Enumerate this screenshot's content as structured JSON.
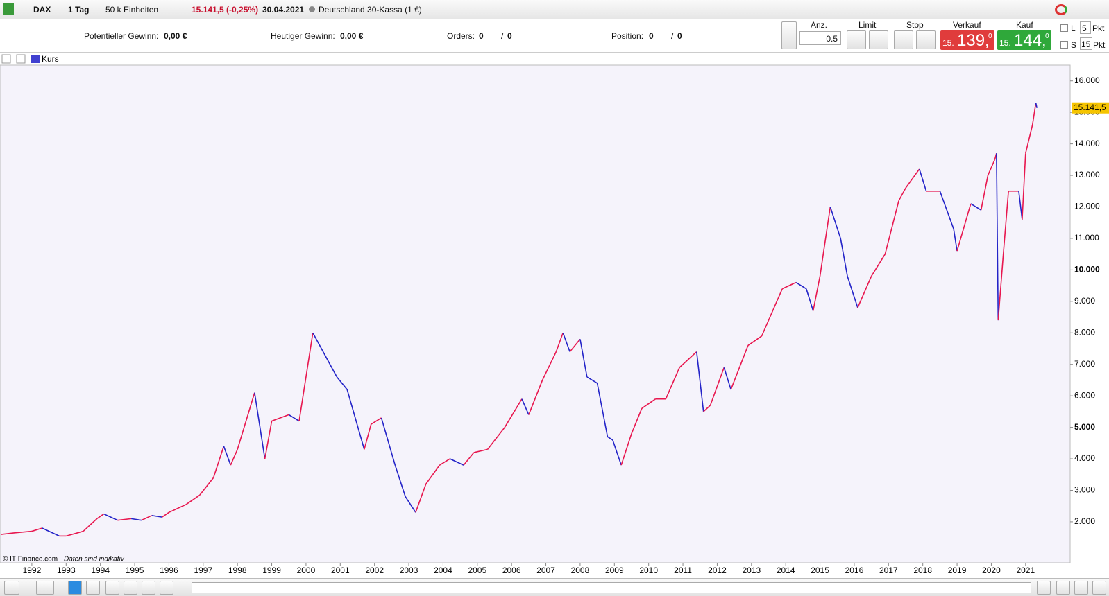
{
  "toolbar": {
    "symbol": "DAX",
    "period": "1 Tag",
    "units": "50 k Einheiten",
    "price": "15.141,5 (-0,25%)",
    "date": "30.04.2021",
    "instrument": "Deutschland 30-Kassa (1 €)"
  },
  "info": {
    "potential_label": "Potentieller Gewinn:",
    "potential_value": "0,00 €",
    "daily_label": "Heutiger Gewinn:",
    "daily_value": "0,00 €",
    "orders_label": "Orders:",
    "orders_open": "0",
    "orders_sep": "/",
    "orders_total": "0",
    "position_label": "Position:",
    "position_open": "0",
    "position_sep": "/",
    "position_total": "0"
  },
  "order_panel": {
    "amount_label": "Anz.",
    "amount": "0.5",
    "limit_label": "Limit",
    "stop_label": "Stop",
    "sell_label": "Verkauf",
    "sell_prefix": "15.",
    "sell_main": "139,",
    "sell_suffix": "0",
    "buy_label": "Kauf",
    "buy_prefix": "15.",
    "buy_main": "144,",
    "buy_suffix": "0",
    "l_label": "L",
    "l_value": "5",
    "l_unit": "Pkt",
    "s_label": "S",
    "s_value": "15",
    "s_unit": "Pkt"
  },
  "chart": {
    "type": "line",
    "legend": "Kurs",
    "copyright": "© IT-Finance.com",
    "note": "Daten sind indikativ",
    "last_price_label": "15.141,5",
    "up_color": "#e8174f",
    "down_color": "#2323c8",
    "xlim": [
      1991.07,
      2022.3
    ],
    "ylim": [
      700,
      16500
    ],
    "xticks": [
      1992,
      1993,
      1994,
      1995,
      1996,
      1997,
      1998,
      1999,
      2000,
      2001,
      2002,
      2003,
      2004,
      2005,
      2006,
      2007,
      2008,
      2009,
      2010,
      2011,
      2012,
      2013,
      2014,
      2015,
      2016,
      2017,
      2018,
      2019,
      2020,
      2021
    ],
    "yticks": [
      {
        "value": 2000,
        "label": "2.000"
      },
      {
        "value": 3000,
        "label": "3.000"
      },
      {
        "value": 4000,
        "label": "4.000"
      },
      {
        "value": 5000,
        "label": "5.000"
      },
      {
        "value": 6000,
        "label": "6.000"
      },
      {
        "value": 7000,
        "label": "7.000"
      },
      {
        "value": 8000,
        "label": "8.000"
      },
      {
        "value": 9000,
        "label": "9.000"
      },
      {
        "value": 10000,
        "label": "10.000"
      },
      {
        "value": 11000,
        "label": "11.000"
      },
      {
        "value": 12000,
        "label": "12.000"
      },
      {
        "value": 13000,
        "label": "13.000"
      },
      {
        "value": 14000,
        "label": "14.000"
      },
      {
        "value": 15000,
        "label": "15.000"
      },
      {
        "value": 16000,
        "label": "16.000"
      }
    ],
    "series": [
      {
        "name": "Kurs",
        "x": [
          1991.1,
          1991.5,
          1992.0,
          1992.3,
          1992.8,
          1993.0,
          1993.5,
          1993.9,
          1994.1,
          1994.5,
          1994.9,
          1995.2,
          1995.5,
          1995.8,
          1996.0,
          1996.5,
          1996.9,
          1997.3,
          1997.6,
          1997.8,
          1998.0,
          1998.5,
          1998.8,
          1999.0,
          1999.5,
          1999.8,
          2000.2,
          2000.5,
          2000.9,
          2001.2,
          2001.7,
          2001.9,
          2002.2,
          2002.6,
          2002.9,
          2003.2,
          2003.5,
          2003.9,
          2004.2,
          2004.6,
          2004.9,
          2005.3,
          2005.8,
          2006.3,
          2006.5,
          2006.9,
          2007.3,
          2007.5,
          2007.7,
          2008.0,
          2008.2,
          2008.5,
          2008.8,
          2008.95,
          2009.2,
          2009.5,
          2009.8,
          2010.2,
          2010.5,
          2010.9,
          2011.4,
          2011.6,
          2011.8,
          2012.2,
          2012.4,
          2012.9,
          2013.3,
          2013.5,
          2013.9,
          2014.3,
          2014.6,
          2014.8,
          2015.0,
          2015.3,
          2015.6,
          2015.8,
          2016.1,
          2016.5,
          2016.9,
          2017.3,
          2017.5,
          2017.9,
          2018.1,
          2018.5,
          2018.9,
          2019.0,
          2019.4,
          2019.7,
          2019.9,
          2020.1,
          2020.15,
          2020.2,
          2020.35,
          2020.5,
          2020.8,
          2020.9,
          2021.0,
          2021.2,
          2021.3,
          2021.33
        ],
        "values": [
          1600,
          1650,
          1700,
          1800,
          1550,
          1550,
          1700,
          2100,
          2250,
          2050,
          2100,
          2050,
          2200,
          2150,
          2300,
          2550,
          2850,
          3400,
          4400,
          3800,
          4300,
          6100,
          4000,
          5200,
          5400,
          5200,
          8000,
          7400,
          6600,
          6200,
          4300,
          5100,
          5300,
          3800,
          2800,
          2300,
          3200,
          3800,
          4000,
          3800,
          4200,
          4300,
          5000,
          5900,
          5400,
          6500,
          7400,
          8000,
          7400,
          7800,
          6600,
          6400,
          4700,
          4600,
          3800,
          4800,
          5600,
          5900,
          5900,
          6900,
          7400,
          5500,
          5700,
          6900,
          6200,
          7600,
          7900,
          8400,
          9400,
          9600,
          9400,
          8700,
          9800,
          12000,
          11000,
          9800,
          8800,
          9800,
          10500,
          12200,
          12600,
          13200,
          12500,
          12500,
          11300,
          10600,
          12100,
          11900,
          13000,
          13500,
          13700,
          8400,
          10500,
          12500,
          12500,
          11600,
          13700,
          14600,
          15300,
          15141.5
        ]
      }
    ]
  }
}
